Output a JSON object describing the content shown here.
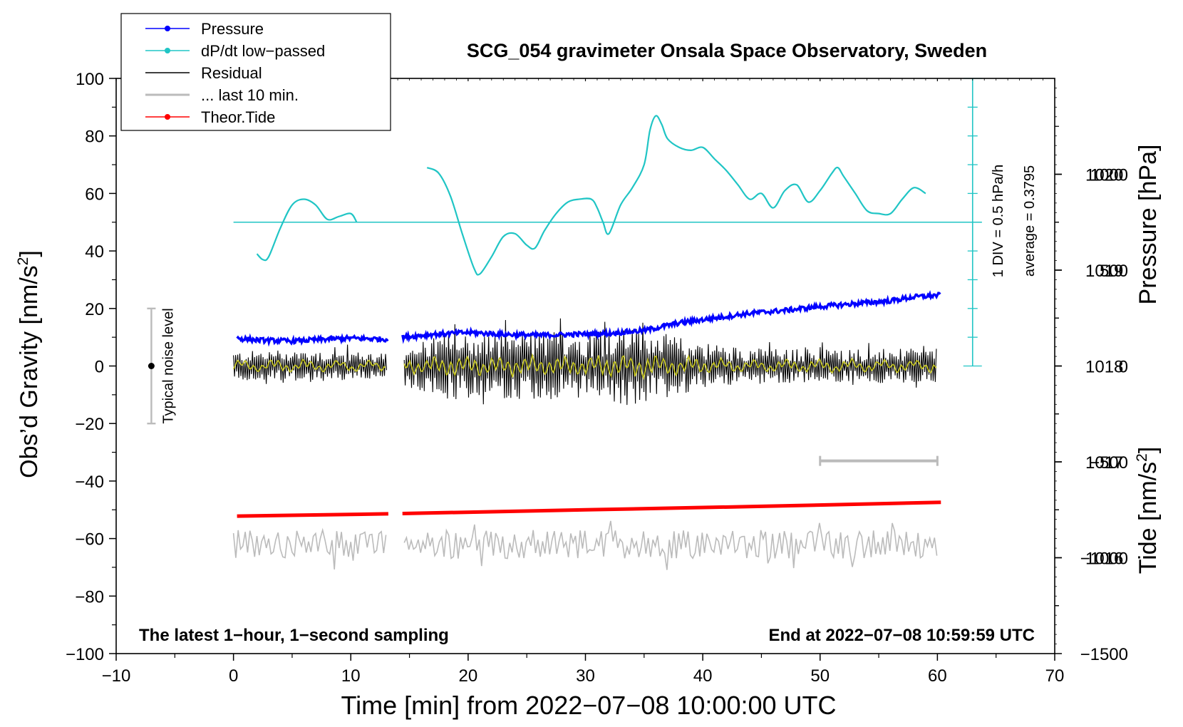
{
  "chart_data": {
    "type": "line",
    "title": "SCG_054 gravimeter Onsala Space Observatory, Sweden",
    "xlabel": "Time [min] from 2022−07−08 10:00:00 UTC",
    "ylabel_left_main": "Obs’d Gravity [nm/s",
    "ylabel_left_sup": "2",
    "ylabel_left_end": "]",
    "ylabel_right_pressure": "Pressure [hPa]",
    "ylabel_right_tide_main": "Tide [nm/s",
    "ylabel_right_tide_sup": "2",
    "ylabel_right_tide_end": "]",
    "xlim": [
      -10,
      70
    ],
    "ylim": [
      -100,
      100
    ],
    "pressure_lim": [
      1015,
      1021
    ],
    "tide_lim": [
      -1500,
      1500
    ],
    "x_ticks": [
      "−10",
      "0",
      "10",
      "20",
      "30",
      "40",
      "50",
      "60",
      "70"
    ],
    "x_tick_values": [
      -10,
      0,
      10,
      20,
      30,
      40,
      50,
      60,
      70
    ],
    "y_ticks": [
      "100",
      "80",
      "60",
      "40",
      "20",
      "0",
      "−20",
      "−40",
      "−60",
      "−80",
      "−100"
    ],
    "y_tick_values": [
      100,
      80,
      60,
      40,
      20,
      0,
      -20,
      -40,
      -60,
      -80,
      -100
    ],
    "pressure_ticks": [
      "1020",
      "1019",
      "1018",
      "1017",
      "1016"
    ],
    "pressure_tick_values": [
      1020,
      1019,
      1018,
      1017,
      1016
    ],
    "tide_ticks": [
      "1000",
      "500",
      "0",
      "−500",
      "−1000",
      "−1500"
    ],
    "tide_tick_values": [
      1000,
      500,
      0,
      -500,
      -1000,
      -1500
    ],
    "legend": [
      {
        "label": "Pressure",
        "color": "#0000ff",
        "marker": true
      },
      {
        "label": "dP/dt low−passed",
        "color": "#20c5c5",
        "marker": true
      },
      {
        "label": "Residual",
        "color": "#000000",
        "marker": false
      },
      {
        "label": "... last 10 min.",
        "color": "#bbbbbb",
        "marker": false
      },
      {
        "label": "Theor.Tide",
        "color": "#ff0000",
        "marker": true
      }
    ],
    "legend_position": "top-left",
    "annotations": {
      "noise_label": "Typical noise level",
      "noise_range": [
        -20,
        20
      ],
      "noise_x": -7,
      "dpdt_scale": "1 DIV = 0.5 hPa/h",
      "dpdt_average": "average = 0.3795",
      "footer_left": "The latest 1−hour, 1−second sampling",
      "footer_right": "End at 2022−07−08 10:59:59 UTC",
      "last10_bracket": [
        50,
        60
      ],
      "last10_y": -33,
      "dpdt_axis_x": 63,
      "dpdt_baseline": 50
    },
    "gap": [
      13.2,
      14.4
    ],
    "series": [
      {
        "name": "Pressure",
        "units": "hPa",
        "color": "#0000ff",
        "x": [
          0.3,
          2,
          5,
          8,
          10,
          13,
          14.4,
          17,
          20,
          23,
          26,
          29,
          32,
          35,
          38,
          41,
          44,
          47,
          50,
          53,
          56,
          58,
          60.3
        ],
        "y": [
          1018.29,
          1018.27,
          1018.26,
          1018.28,
          1018.29,
          1018.28,
          1018.3,
          1018.33,
          1018.35,
          1018.33,
          1018.32,
          1018.33,
          1018.34,
          1018.37,
          1018.45,
          1018.5,
          1018.55,
          1018.58,
          1018.62,
          1018.65,
          1018.68,
          1018.72,
          1018.74
        ]
      },
      {
        "name": "dP/dt low-passed",
        "units": "plotted on gravity axis",
        "color": "#20c5c5",
        "x": [
          2,
          2.5,
          3,
          4,
          5,
          6,
          7,
          8,
          9,
          10,
          10.5,
          null,
          16.5,
          17.5,
          18.5,
          19.5,
          20.5,
          21,
          22,
          23,
          24,
          25,
          25.7,
          26.5,
          27.5,
          28.5,
          29.5,
          30.5,
          31,
          31.5,
          32,
          33,
          34,
          35,
          35.5,
          36,
          36.5,
          37,
          38,
          39,
          40,
          41,
          42,
          43,
          44,
          45,
          46,
          47,
          48,
          49,
          50,
          51,
          51.5,
          52,
          53,
          54,
          55,
          56,
          57,
          58,
          59
        ],
        "y": [
          39,
          37,
          38,
          48,
          56,
          58,
          56,
          51,
          52,
          53,
          50,
          null,
          69,
          67,
          59,
          46,
          34,
          32,
          38,
          45,
          46,
          42,
          41,
          47,
          53,
          57,
          58,
          58,
          55,
          50,
          46,
          56,
          62,
          70,
          82,
          87,
          84,
          79,
          76,
          75,
          76,
          72,
          68,
          63,
          58,
          60,
          55,
          61,
          63,
          57,
          61,
          67,
          69,
          66,
          60,
          54,
          53,
          53,
          58,
          62,
          60
        ]
      },
      {
        "name": "Residual",
        "units": "nm/s2",
        "color": "#000000",
        "envelope_x": [
          0,
          5,
          10,
          13,
          14.5,
          18,
          22,
          26,
          30,
          34,
          38,
          42,
          46,
          50,
          55,
          60
        ],
        "envelope_amp": [
          5,
          6,
          5,
          5,
          7,
          11,
          11,
          12,
          12,
          14,
          10,
          7,
          6,
          6,
          6,
          6
        ]
      },
      {
        "name": "Residual smoothed",
        "units": "nm/s2",
        "color": "#c8c820",
        "amplitude": 3
      },
      {
        "name": "... last 10 min.",
        "units": "nm/s2",
        "color": "#bbbbbb",
        "center": -62,
        "amplitude": 5
      },
      {
        "name": "Theor.Tide",
        "units": "nm/s2",
        "color": "#ff0000",
        "x": [
          0.3,
          13.2,
          14.4,
          30,
          45,
          60.3
        ],
        "y": [
          -52.2,
          -51.4,
          -51.3,
          -50.0,
          -48.8,
          -47.4
        ]
      }
    ]
  }
}
